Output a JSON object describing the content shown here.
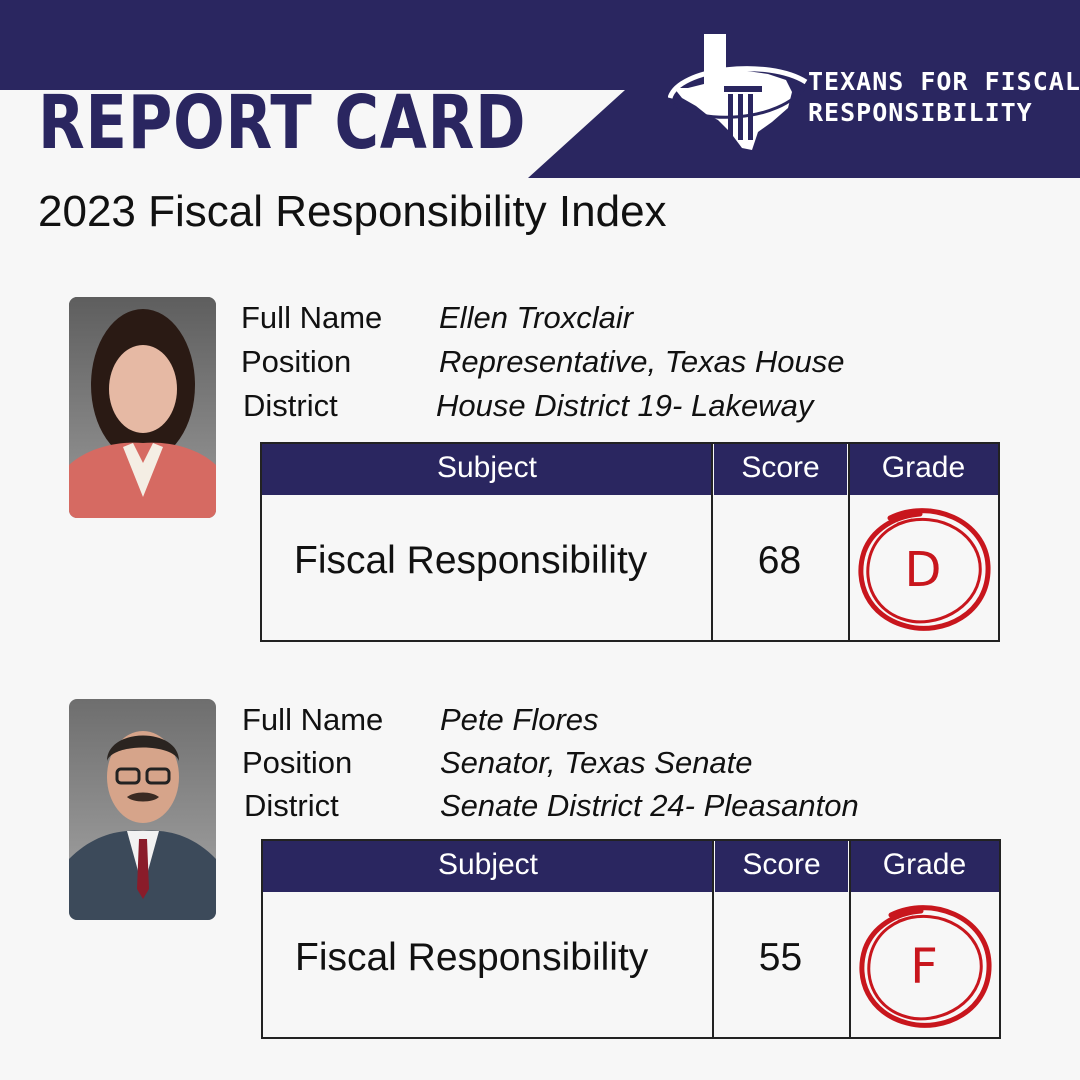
{
  "header": {
    "title": "REPORT CARD",
    "subtitle": "2023 Fiscal Responsibility Index",
    "brand_color": "#2a2660"
  },
  "logo": {
    "line1": "TEXANS FOR FISCAL",
    "line2": "RESPONSIBILITY",
    "icon": "texas-column-logo"
  },
  "labels": {
    "full_name": "Full Name",
    "position": "Position",
    "district": "District"
  },
  "table_headers": {
    "subject": "Subject",
    "score": "Score",
    "grade": "Grade"
  },
  "cards": [
    {
      "full_name": "Ellen Troxclair",
      "position": "Representative, Texas House",
      "district": "House District 19- Lakeway",
      "subject": "Fiscal Responsibility",
      "score": "68",
      "grade": "D"
    },
    {
      "full_name": "Pete Flores",
      "position": "Senator, Texas Senate",
      "district": "Senate District 24- Pleasanton",
      "subject": "Fiscal Responsibility",
      "score": "55",
      "grade": "F"
    }
  ],
  "grade_color": "#c8161d"
}
